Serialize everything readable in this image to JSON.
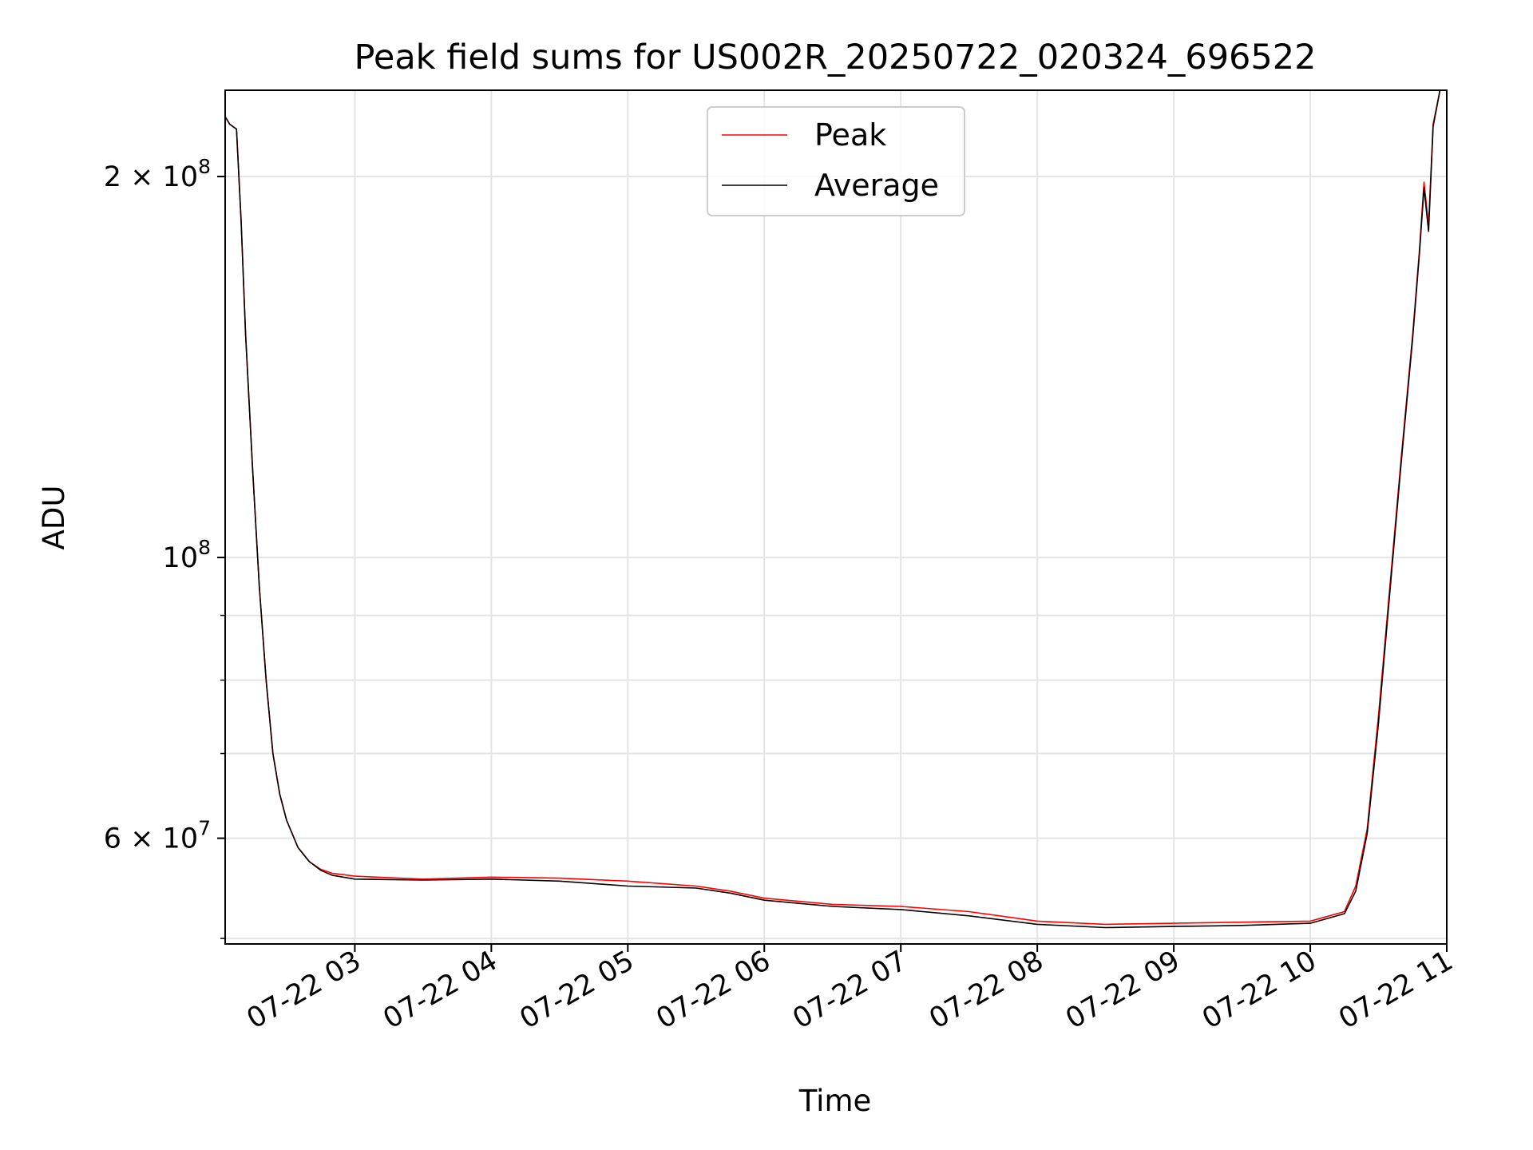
{
  "chart_data": {
    "type": "line",
    "title": "Peak field sums for US002R_20250722_020324_696522",
    "xlabel": "Time",
    "ylabel": "ADU",
    "yscale": "log",
    "xlim": [
      "2025-07-22 02:03",
      "2025-07-22 11:00"
    ],
    "ylim": [
      49500000,
      234000000
    ],
    "grid": true,
    "legend_position": "top-center",
    "x_ticks": [
      "07-22 03",
      "07-22 04",
      "07-22 05",
      "07-22 06",
      "07-22 07",
      "07-22 08",
      "07-22 09",
      "07-22 10",
      "07-22 11"
    ],
    "y_major_ticks": [
      {
        "value": 200000000,
        "label_base": "2 × 10",
        "label_exp": "8"
      },
      {
        "value": 100000000,
        "label_base": "10",
        "label_exp": "8"
      },
      {
        "value": 60000000,
        "label_base": "6 × 10",
        "label_exp": "7"
      }
    ],
    "y_minor_ticks": [
      50000000,
      70000000,
      80000000,
      90000000
    ],
    "series": [
      {
        "name": "Peak",
        "color": "#ff0000",
        "x": [
          "2025-07-22 02:03",
          "2025-07-22 02:05",
          "2025-07-22 02:08",
          "2025-07-22 02:10",
          "2025-07-22 02:12",
          "2025-07-22 02:15",
          "2025-07-22 02:18",
          "2025-07-22 02:21",
          "2025-07-22 02:24",
          "2025-07-22 02:27",
          "2025-07-22 02:30",
          "2025-07-22 02:35",
          "2025-07-22 02:40",
          "2025-07-22 02:45",
          "2025-07-22 02:50",
          "2025-07-22 03:00",
          "2025-07-22 03:30",
          "2025-07-22 04:00",
          "2025-07-22 04:30",
          "2025-07-22 05:00",
          "2025-07-22 05:30",
          "2025-07-22 05:45",
          "2025-07-22 06:00",
          "2025-07-22 06:30",
          "2025-07-22 07:00",
          "2025-07-22 07:30",
          "2025-07-22 08:00",
          "2025-07-22 08:30",
          "2025-07-22 09:00",
          "2025-07-22 09:30",
          "2025-07-22 10:00",
          "2025-07-22 10:15",
          "2025-07-22 10:20",
          "2025-07-22 10:25",
          "2025-07-22 10:30",
          "2025-07-22 10:35",
          "2025-07-22 10:40",
          "2025-07-22 10:45",
          "2025-07-22 10:48",
          "2025-07-22 10:50",
          "2025-07-22 10:52",
          "2025-07-22 10:54",
          "2025-07-22 10:57"
        ],
        "y": [
          223000000,
          220000000,
          218000000,
          185000000,
          150000000,
          118000000,
          95000000,
          80000000,
          70000000,
          65000000,
          62000000,
          59000000,
          57500000,
          56700000,
          56300000,
          56000000,
          55700000,
          55900000,
          55800000,
          55500000,
          55000000,
          54500000,
          53800000,
          53200000,
          53000000,
          52500000,
          51600000,
          51300000,
          51400000,
          51500000,
          51600000,
          52500000,
          55000000,
          61000000,
          75000000,
          95000000,
          120000000,
          150000000,
          175000000,
          198000000,
          183000000,
          220000000,
          234000000
        ]
      },
      {
        "name": "Average",
        "color": "#000000",
        "x": [
          "2025-07-22 02:03",
          "2025-07-22 02:05",
          "2025-07-22 02:08",
          "2025-07-22 02:10",
          "2025-07-22 02:12",
          "2025-07-22 02:15",
          "2025-07-22 02:18",
          "2025-07-22 02:21",
          "2025-07-22 02:24",
          "2025-07-22 02:27",
          "2025-07-22 02:30",
          "2025-07-22 02:35",
          "2025-07-22 02:40",
          "2025-07-22 02:45",
          "2025-07-22 02:50",
          "2025-07-22 03:00",
          "2025-07-22 03:30",
          "2025-07-22 04:00",
          "2025-07-22 04:30",
          "2025-07-22 05:00",
          "2025-07-22 05:30",
          "2025-07-22 05:45",
          "2025-07-22 06:00",
          "2025-07-22 06:30",
          "2025-07-22 07:00",
          "2025-07-22 07:30",
          "2025-07-22 08:00",
          "2025-07-22 08:30",
          "2025-07-22 09:00",
          "2025-07-22 09:30",
          "2025-07-22 10:00",
          "2025-07-22 10:15",
          "2025-07-22 10:20",
          "2025-07-22 10:25",
          "2025-07-22 10:30",
          "2025-07-22 10:35",
          "2025-07-22 10:40",
          "2025-07-22 10:45",
          "2025-07-22 10:48",
          "2025-07-22 10:50",
          "2025-07-22 10:52",
          "2025-07-22 10:54",
          "2025-07-22 10:57"
        ],
        "y": [
          223000000,
          220000000,
          218000000,
          185000000,
          150000000,
          118000000,
          95000000,
          80000000,
          70000000,
          65000000,
          62000000,
          59000000,
          57500000,
          56600000,
          56100000,
          55700000,
          55600000,
          55700000,
          55500000,
          55000000,
          54800000,
          54300000,
          53600000,
          53000000,
          52700000,
          52100000,
          51300000,
          51000000,
          51100000,
          51200000,
          51400000,
          52300000,
          54500000,
          60500000,
          74000000,
          94000000,
          119000000,
          149000000,
          174000000,
          196000000,
          181000000,
          219000000,
          234000000
        ]
      }
    ]
  }
}
